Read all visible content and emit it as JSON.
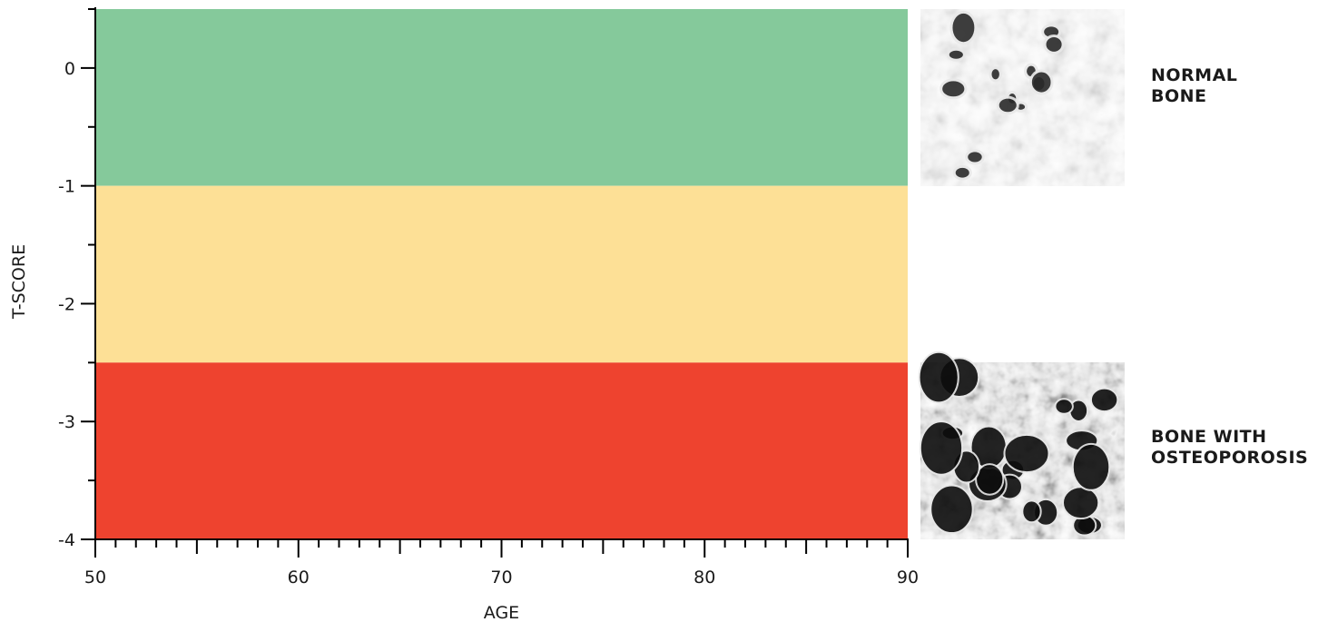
{
  "chart_data": {
    "type": "area",
    "xlabel": "AGE",
    "ylabel": "T-SCORE",
    "xlim": [
      50,
      90
    ],
    "ylim": [
      -4,
      0.5
    ],
    "x_ticks": [
      50,
      60,
      70,
      80,
      90
    ],
    "x_tick_labels": [
      "50",
      "60",
      "70",
      "80",
      "90"
    ],
    "x_minor_step": 1,
    "y_ticks": [
      0,
      -1,
      -2,
      -3,
      -4
    ],
    "y_tick_labels": [
      "0",
      "-1",
      "-2",
      "-3",
      "-4"
    ],
    "y_minor_step": 0.5,
    "grid": false,
    "bands": [
      {
        "y_from": -1,
        "y_to": 0.5,
        "color": "#85c99b"
      },
      {
        "y_from": -2.5,
        "y_to": -1,
        "color": "#fde096"
      },
      {
        "y_from": -4,
        "y_to": -2.5,
        "color": "#ee432f"
      }
    ]
  },
  "bones": [
    {
      "name": "normal",
      "lines": [
        "NORMAL",
        "BONE"
      ],
      "band_top": 0.5,
      "band_bottom": -1,
      "texture": "normal"
    },
    {
      "name": "osteoporosis",
      "lines": [
        "BONE WITH",
        "OSTEOPOROSIS"
      ],
      "band_top": -2.5,
      "band_bottom": -4,
      "texture": "osteoporosis"
    }
  ]
}
